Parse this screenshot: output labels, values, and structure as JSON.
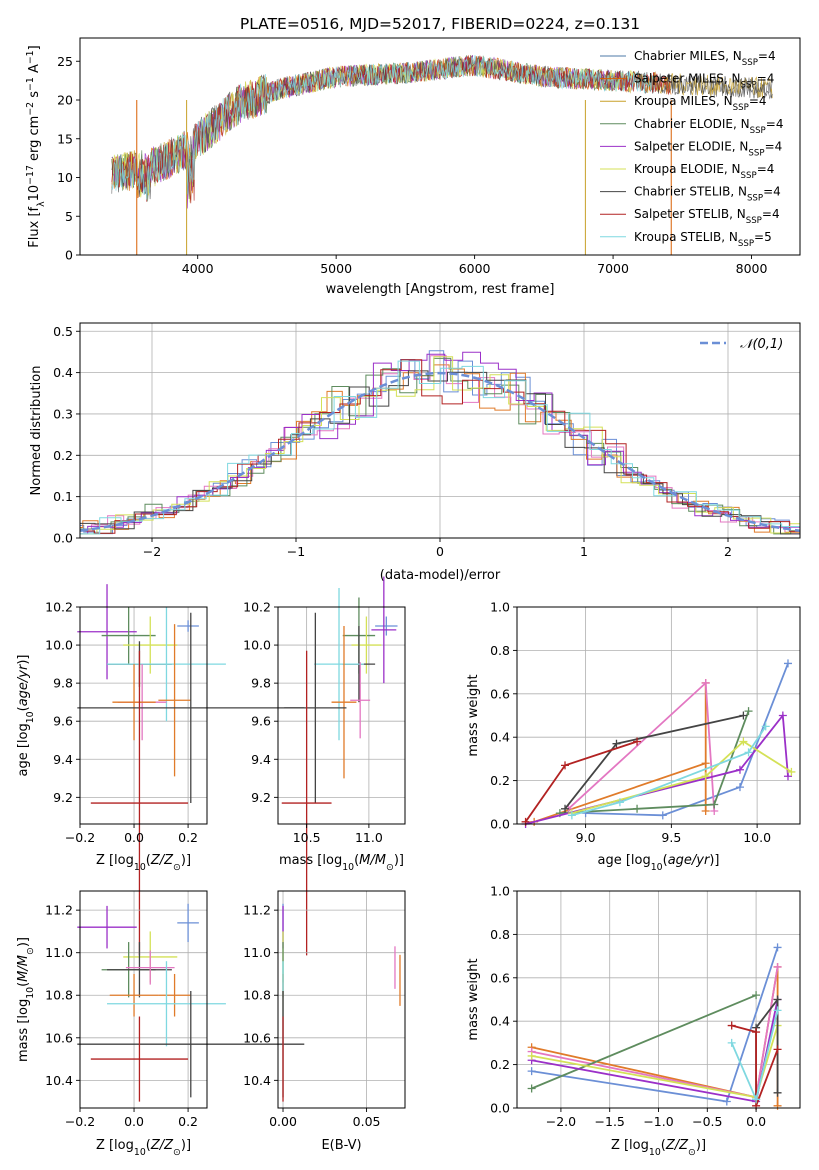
{
  "title": "PLATE=0516, MJD=52017, FIBERID=0224, z=0.131",
  "colors": {
    "series": [
      "#4e79a7",
      "#d95f02",
      "#e07b39",
      "#5e8c5e",
      "#9b30c8",
      "#d4e157",
      "#444444",
      "#b22222",
      "#7fd8e0"
    ],
    "cornflower": "#6b8fd6",
    "orange": "#e07b2a",
    "pink": "#e377c2",
    "green": "#5e8c5e",
    "purple": "#9b30c8",
    "yellow": "#d4e157",
    "dark": "#444444",
    "red": "#b22222",
    "cyan": "#7fd8e0"
  },
  "chart_data": [
    {
      "id": "spectrum",
      "type": "line",
      "xlabel": "wavelength [Angstrom, rest frame]",
      "ylabel": "Flux [f_λ10^-17 erg cm^-2 s^-1 A^-1]",
      "xlim": [
        3150,
        8350
      ],
      "ylim": [
        0,
        28
      ],
      "xticks": [
        4000,
        5000,
        6000,
        7000,
        8000
      ],
      "yticks": [
        0,
        5,
        10,
        15,
        20,
        25
      ],
      "legend_position": "right",
      "grid": false,
      "series": [
        {
          "name": "Chabrier MILES, N_SSP=4"
        },
        {
          "name": "Salpeter MILES, N_SSP=4"
        },
        {
          "name": "Kroupa MILES, N_SSP=4"
        },
        {
          "name": "Chabrier ELODIE, N_SSP=4"
        },
        {
          "name": "Salpeter ELODIE, N_SSP=4"
        },
        {
          "name": "Kroupa ELODIE, N_SSP=4"
        },
        {
          "name": "Chabrier STELIB, N_SSP=4"
        },
        {
          "name": "Salpeter STELIB, N_SSP=4"
        },
        {
          "name": "Kroupa STELIB, N_SSP=5"
        }
      ],
      "trend": {
        "x": [
          3400,
          3700,
          3950,
          4300,
          4600,
          5000,
          5500,
          6000,
          6500,
          7000,
          7500,
          8100
        ],
        "y": [
          10.5,
          11.5,
          14,
          19.5,
          21.5,
          23,
          23.5,
          24.5,
          23,
          22.5,
          22,
          21.5
        ]
      }
    },
    {
      "id": "residual-hist",
      "type": "histogram",
      "xlabel": "(data-model)/error",
      "ylabel": "Normed distribution",
      "xlim": [
        -2.5,
        2.5
      ],
      "ylim": [
        0,
        0.52
      ],
      "xticks": [
        -2,
        -1,
        0,
        1,
        2
      ],
      "yticks": [
        0.0,
        0.1,
        0.2,
        0.3,
        0.4,
        0.5
      ],
      "grid": true,
      "legend": "𝒩(0,1)",
      "legend_position": "top-right"
    },
    {
      "id": "age-vs-Z",
      "type": "errorbar",
      "xlabel": "Z [log10(Z/Z⊙)]",
      "ylabel": "age [log10(age/yr)]",
      "xlim": [
        -0.2,
        0.27
      ],
      "ylim": [
        9.06,
        10.2
      ],
      "xticks": [
        -0.2,
        0.0,
        0.2
      ],
      "yticks": [
        9.2,
        9.4,
        9.6,
        9.8,
        10.0,
        10.2
      ],
      "points": [
        {
          "x": 0.2,
          "y": 10.1,
          "xerr": 0.04,
          "yerr": 0.03,
          "c": "cornflower"
        },
        {
          "x": -0.1,
          "y": 10.07,
          "xerr": 0.11,
          "yerr": 0.25,
          "c": "purple"
        },
        {
          "x": -0.02,
          "y": 10.05,
          "xerr": 0.1,
          "yerr": 0.15,
          "c": "green"
        },
        {
          "x": 0.06,
          "y": 10.0,
          "xerr": 0.1,
          "yerr": 0.15,
          "c": "yellow"
        },
        {
          "x": 0.02,
          "y": 9.9,
          "xerr": 0.12,
          "yerr": 0.12,
          "c": "dark"
        },
        {
          "x": 0.12,
          "y": 9.9,
          "xerr": 0.22,
          "yerr": 0.3,
          "c": "cyan"
        },
        {
          "x": 0.15,
          "y": 9.71,
          "xerr": 0.06,
          "yerr": 0.4,
          "c": "orange"
        },
        {
          "x": 0.03,
          "y": 9.7,
          "xerr": 0.09,
          "yerr": 0.2,
          "c": "pink"
        },
        {
          "x": 0.0,
          "y": 9.7,
          "xerr": 0.08,
          "yerr": 0.2,
          "c": "orange"
        },
        {
          "x": 0.21,
          "y": 9.67,
          "xerr": 0.42,
          "yerr": 0.5,
          "c": "dark"
        },
        {
          "x": 0.02,
          "y": 9.17,
          "xerr": 0.18,
          "yerr": 0.8,
          "c": "red"
        }
      ]
    },
    {
      "id": "age-vs-mass",
      "type": "errorbar",
      "xlabel": "mass [log10(M/M⊙)]",
      "ylabel": "",
      "xlim": [
        10.27,
        11.29
      ],
      "ylim": [
        9.06,
        10.2
      ],
      "xticks": [
        10.5,
        11.0
      ],
      "yticks": [
        9.2,
        9.4,
        9.6,
        9.8,
        10.0,
        10.2
      ],
      "points": [
        {
          "x": 11.14,
          "y": 10.1,
          "xerr": 0.09,
          "yerr": 0.05,
          "c": "cornflower"
        },
        {
          "x": 11.12,
          "y": 10.08,
          "xerr": 0.1,
          "yerr": 0.28,
          "c": "purple"
        },
        {
          "x": 10.92,
          "y": 10.05,
          "xerr": 0.13,
          "yerr": 0.2,
          "c": "green"
        },
        {
          "x": 10.98,
          "y": 10.0,
          "xerr": 0.12,
          "yerr": 0.15,
          "c": "yellow"
        },
        {
          "x": 10.92,
          "y": 9.9,
          "xerr": 0.13,
          "yerr": 0.2,
          "c": "dark"
        },
        {
          "x": 10.76,
          "y": 9.9,
          "xerr": 0.2,
          "yerr": 0.4,
          "c": "cyan"
        },
        {
          "x": 10.93,
          "y": 9.71,
          "xerr": 0.08,
          "yerr": 0.2,
          "c": "pink"
        },
        {
          "x": 10.8,
          "y": 9.7,
          "xerr": 0.1,
          "yerr": 0.4,
          "c": "orange"
        },
        {
          "x": 10.57,
          "y": 9.67,
          "xerr": 0.25,
          "yerr": 0.5,
          "c": "dark"
        },
        {
          "x": 10.5,
          "y": 9.17,
          "xerr": 0.2,
          "yerr": 0.8,
          "c": "red"
        }
      ]
    },
    {
      "id": "massweight-vs-age",
      "type": "line",
      "xlabel": "age [log10(age/yr)]",
      "ylabel": "mass weight",
      "xlim": [
        8.6,
        10.25
      ],
      "ylim": [
        0,
        1.0
      ],
      "xticks": [
        9.0,
        9.5,
        10.0
      ],
      "yticks": [
        0.0,
        0.2,
        0.4,
        0.6,
        0.8,
        1.0
      ],
      "series": [
        {
          "c": "cornflower",
          "x": [
            9.0,
            9.45,
            9.9,
            10.18
          ],
          "y": [
            0.05,
            0.04,
            0.17,
            0.74
          ]
        },
        {
          "c": "orange",
          "x": [
            8.7,
            9.7,
            9.7,
            9.7
          ],
          "y": [
            0.01,
            0.28,
            0.65,
            0.06
          ]
        },
        {
          "c": "pink",
          "x": [
            8.9,
            9.7,
            9.75
          ],
          "y": [
            0.07,
            0.65,
            0.06
          ]
        },
        {
          "c": "green",
          "x": [
            8.85,
            9.3,
            9.75,
            9.95
          ],
          "y": [
            0.05,
            0.07,
            0.09,
            0.52
          ]
        },
        {
          "c": "purple",
          "x": [
            8.65,
            9.9,
            10.15,
            10.18
          ],
          "y": [
            0.0,
            0.25,
            0.5,
            0.22
          ]
        },
        {
          "c": "yellow",
          "x": [
            8.92,
            9.7,
            9.92,
            10.2
          ],
          "y": [
            0.05,
            0.22,
            0.38,
            0.24
          ]
        },
        {
          "c": "dark",
          "x": [
            8.88,
            9.18,
            9.92
          ],
          "y": [
            0.07,
            0.37,
            0.5
          ]
        },
        {
          "c": "red",
          "x": [
            8.65,
            8.88,
            9.3
          ],
          "y": [
            0.01,
            0.27,
            0.38
          ]
        },
        {
          "c": "cyan",
          "x": [
            8.92,
            9.2,
            9.95,
            10.05
          ],
          "y": [
            0.04,
            0.1,
            0.33,
            0.45
          ]
        }
      ]
    },
    {
      "id": "mass-vs-Z",
      "type": "errorbar",
      "xlabel": "Z [log10(Z/Z⊙)]",
      "ylabel": "mass [log10(M/M⊙)]",
      "xlim": [
        -0.2,
        0.27
      ],
      "ylim": [
        10.27,
        11.29
      ],
      "xticks": [
        -0.2,
        0.0,
        0.2
      ],
      "yticks": [
        10.4,
        10.6,
        10.8,
        11.0,
        11.2
      ],
      "points": [
        {
          "x": 0.2,
          "y": 11.14,
          "xerr": 0.04,
          "yerr": 0.09,
          "c": "cornflower"
        },
        {
          "x": -0.1,
          "y": 11.12,
          "xerr": 0.11,
          "yerr": 0.1,
          "c": "purple"
        },
        {
          "x": 0.06,
          "y": 10.98,
          "xerr": 0.1,
          "yerr": 0.12,
          "c": "yellow"
        },
        {
          "x": -0.02,
          "y": 10.92,
          "xerr": 0.1,
          "yerr": 0.13,
          "c": "green"
        },
        {
          "x": 0.02,
          "y": 10.92,
          "xerr": 0.12,
          "yerr": 0.13,
          "c": "dark"
        },
        {
          "x": 0.06,
          "y": 10.93,
          "xerr": 0.09,
          "yerr": 0.08,
          "c": "pink"
        },
        {
          "x": 0.15,
          "y": 10.8,
          "xerr": 0.06,
          "yerr": 0.1,
          "c": "orange"
        },
        {
          "x": 0.0,
          "y": 10.8,
          "xerr": 0.09,
          "yerr": 0.1,
          "c": "orange"
        },
        {
          "x": 0.12,
          "y": 10.76,
          "xerr": 0.22,
          "yerr": 0.2,
          "c": "cyan"
        },
        {
          "x": 0.21,
          "y": 10.57,
          "xerr": 0.42,
          "yerr": 0.25,
          "c": "dark"
        },
        {
          "x": 0.02,
          "y": 10.5,
          "xerr": 0.18,
          "yerr": 0.2,
          "c": "red"
        }
      ]
    },
    {
      "id": "mass-vs-ebv",
      "type": "errorbar",
      "xlabel": "E(B-V)",
      "ylabel": "",
      "xlim": [
        -0.003,
        0.073
      ],
      "ylim": [
        10.27,
        11.29
      ],
      "xticks": [
        0.0,
        0.05
      ],
      "xticklabels": [
        "0.00",
        "0.05"
      ],
      "yticks": [
        10.4,
        10.6,
        10.8,
        11.0,
        11.2
      ],
      "points": [
        {
          "x": 0.0,
          "y": 11.14,
          "xerr": 0,
          "yerr": 0.09,
          "c": "cornflower"
        },
        {
          "x": 0.0,
          "y": 11.12,
          "xerr": 0,
          "yerr": 0.1,
          "c": "purple"
        },
        {
          "x": 0.0,
          "y": 10.98,
          "xerr": 0,
          "yerr": 0.12,
          "c": "yellow"
        },
        {
          "x": 0.0,
          "y": 10.92,
          "xerr": 0,
          "yerr": 0.13,
          "c": "green"
        },
        {
          "x": 0.0,
          "y": 10.8,
          "xerr": 0,
          "yerr": 0.1,
          "c": "orange"
        },
        {
          "x": 0.0,
          "y": 10.76,
          "xerr": 0,
          "yerr": 0.2,
          "c": "cyan"
        },
        {
          "x": 0.0,
          "y": 10.57,
          "xerr": 0,
          "yerr": 0.25,
          "c": "dark"
        },
        {
          "x": 0.0,
          "y": 10.5,
          "xerr": 0,
          "yerr": 0.2,
          "c": "red"
        },
        {
          "x": 0.067,
          "y": 10.93,
          "xerr": 0,
          "yerr": 0.1,
          "c": "pink"
        },
        {
          "x": 0.07,
          "y": 10.87,
          "xerr": 0,
          "yerr": 0.12,
          "c": "orange"
        }
      ]
    },
    {
      "id": "massweight-vs-Z",
      "type": "line",
      "xlabel": "Z [log10(Z/Z⊙)]",
      "ylabel": "mass weight",
      "xlim": [
        -2.45,
        0.45
      ],
      "ylim": [
        0,
        1.0
      ],
      "xticks": [
        -2.0,
        -1.5,
        -1.0,
        -0.5,
        0.0
      ],
      "yticks": [
        0.0,
        0.2,
        0.4,
        0.6,
        0.8,
        1.0
      ],
      "series": [
        {
          "c": "cornflower",
          "x": [
            -2.3,
            -0.3,
            0.22
          ],
          "y": [
            0.17,
            0.03,
            0.74
          ]
        },
        {
          "c": "orange",
          "x": [
            -2.3,
            0.0,
            0.22,
            0.22
          ],
          "y": [
            0.28,
            0.05,
            0.65,
            0.01
          ]
        },
        {
          "c": "pink",
          "x": [
            -2.3,
            0.0,
            0.22
          ],
          "y": [
            0.26,
            0.05,
            0.65
          ]
        },
        {
          "c": "green",
          "x": [
            -2.3,
            0.0
          ],
          "y": [
            0.09,
            0.52
          ]
        },
        {
          "c": "purple",
          "x": [
            -2.3,
            0.0,
            0.22
          ],
          "y": [
            0.22,
            0.03,
            0.5
          ]
        },
        {
          "c": "yellow",
          "x": [
            -2.3,
            0.0,
            0.22
          ],
          "y": [
            0.24,
            0.05,
            0.38
          ]
        },
        {
          "c": "dark",
          "x": [
            0.0,
            0.0,
            0.22,
            0.22
          ],
          "y": [
            0.04,
            0.37,
            0.5,
            0.07
          ]
        },
        {
          "c": "red",
          "x": [
            -0.25,
            0.0,
            0.0,
            0.22
          ],
          "y": [
            0.38,
            0.35,
            0.01,
            0.27
          ]
        },
        {
          "c": "cyan",
          "x": [
            -0.25,
            0.0,
            0.22
          ],
          "y": [
            0.3,
            0.04,
            0.45
          ]
        }
      ]
    }
  ]
}
